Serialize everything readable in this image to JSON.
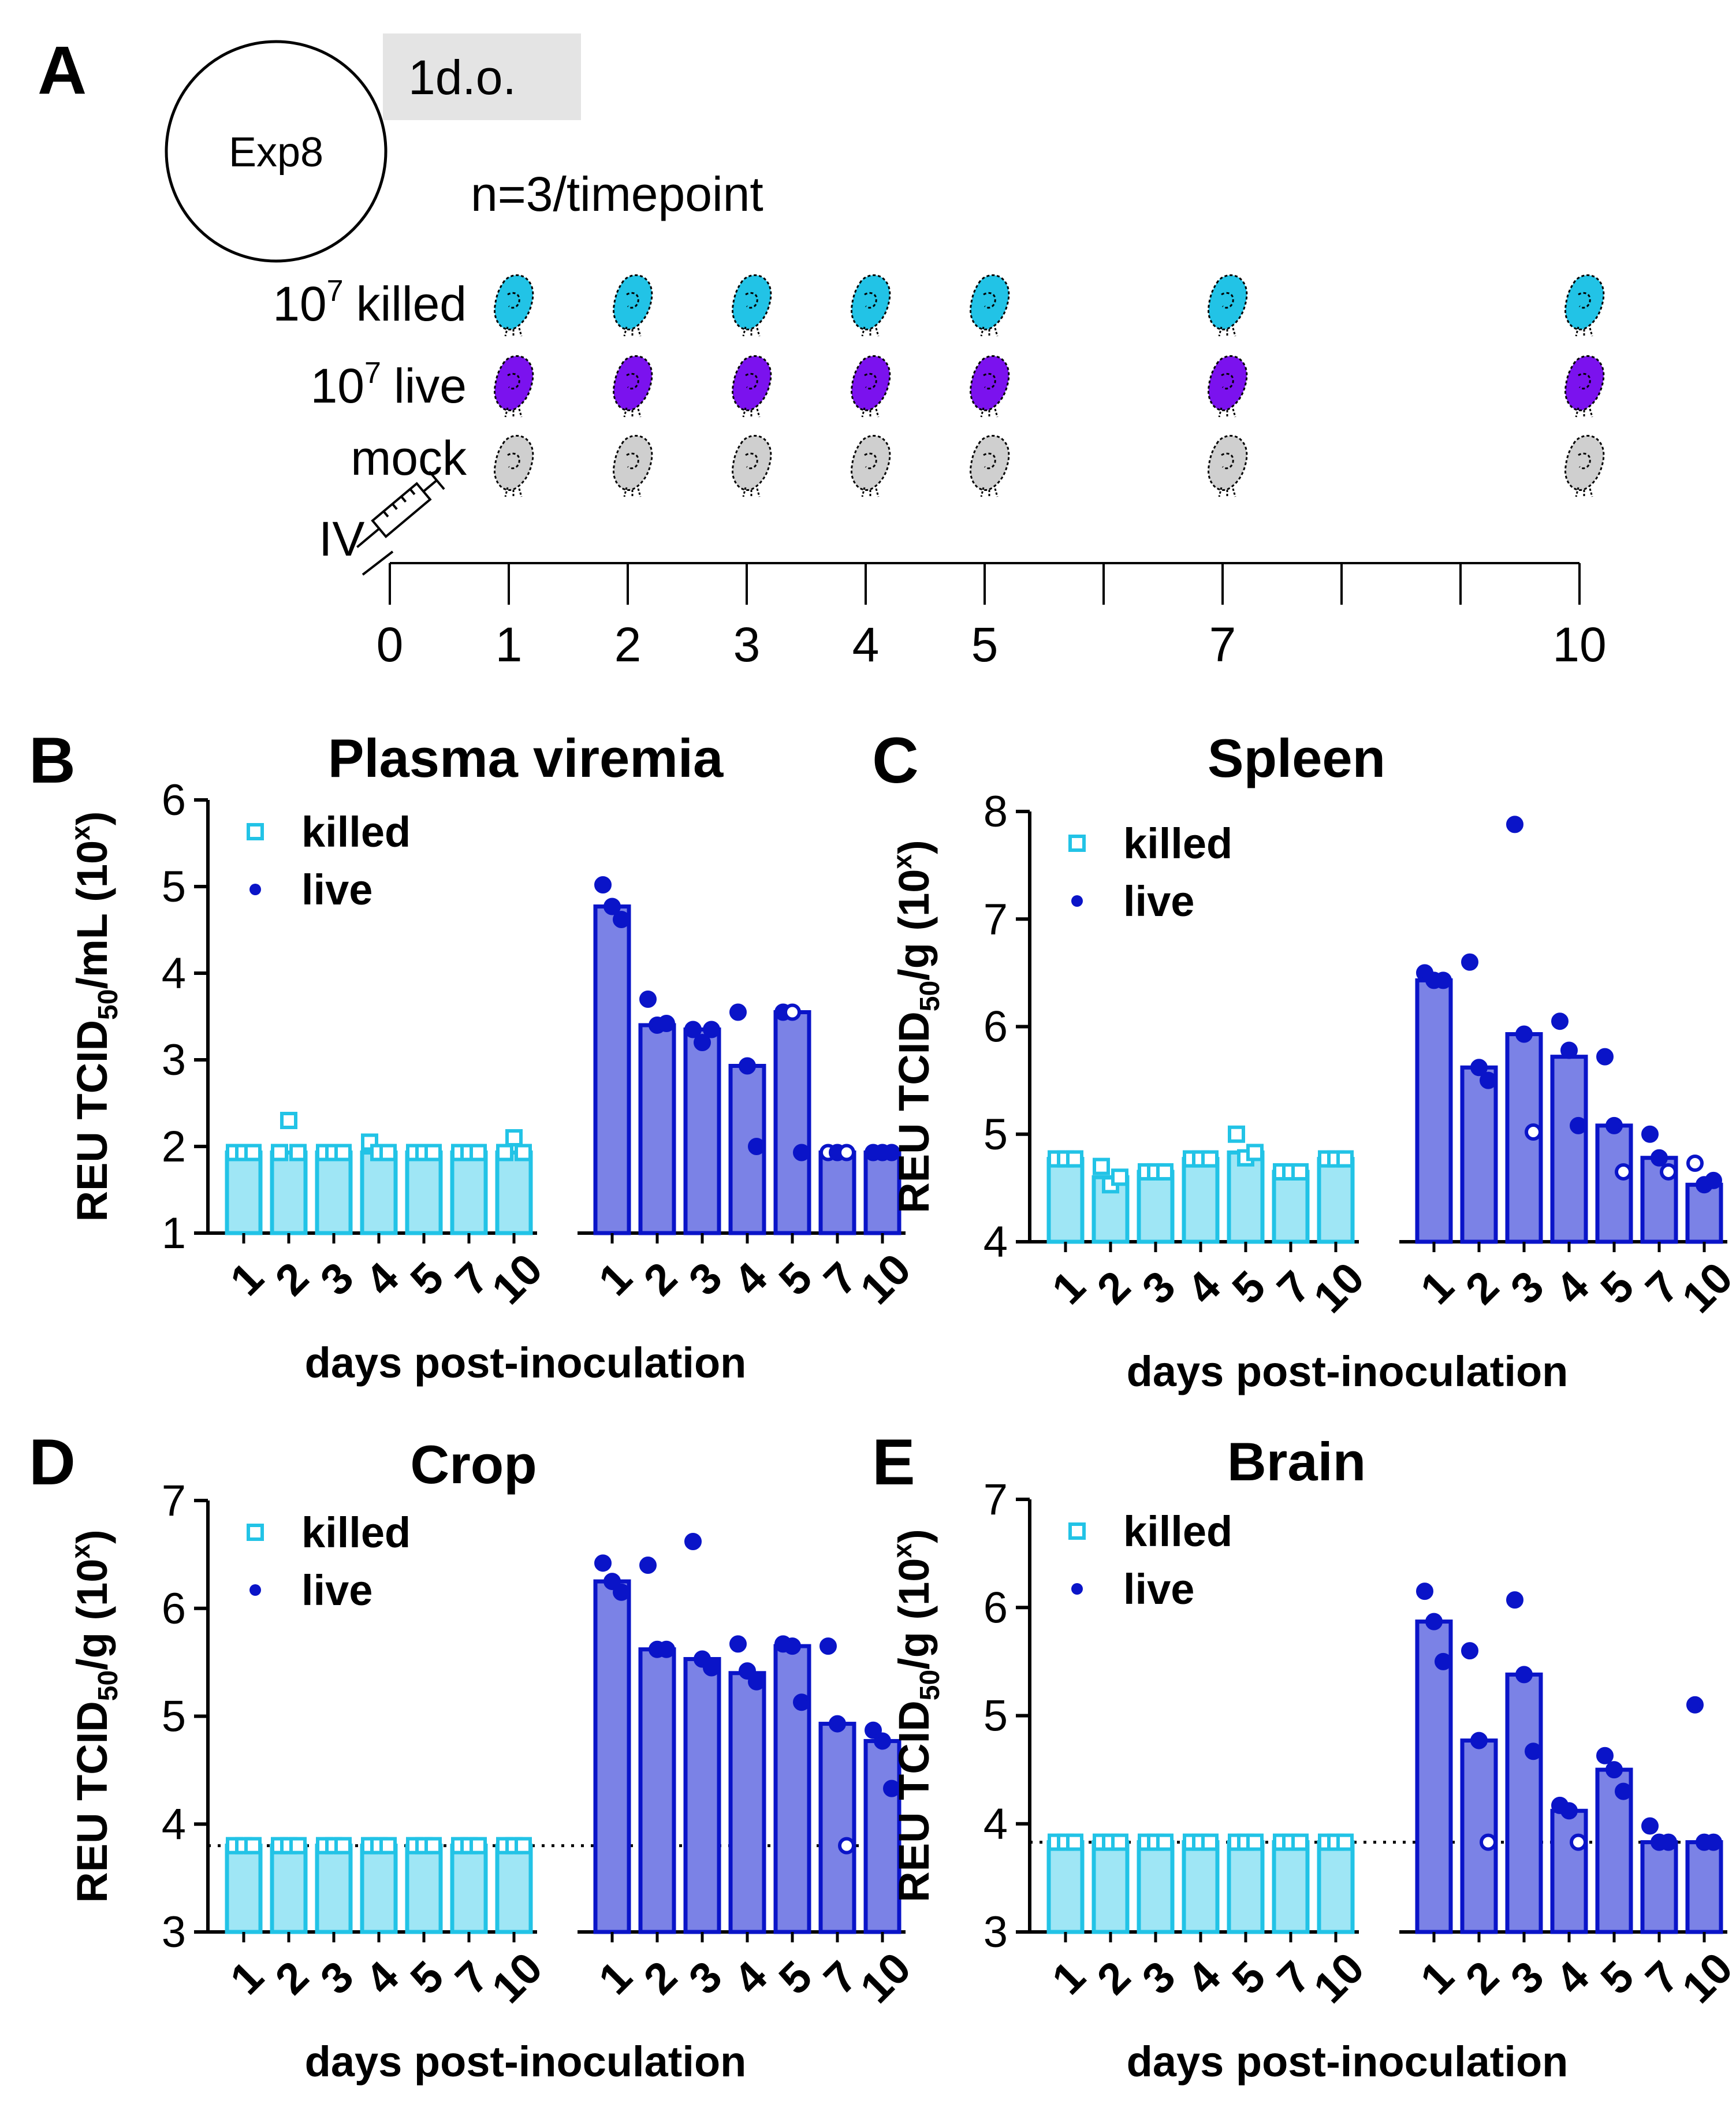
{
  "panel_a": {
    "letter": "A",
    "exp_label": "Exp8",
    "age_label": "1d.o.",
    "n_label": "n=3/timepoint",
    "rows": [
      {
        "exp": "7",
        "text": "killed",
        "color": "#22c3e6"
      },
      {
        "exp": "7",
        "text": "live",
        "color": "#7b12ee"
      },
      {
        "exp": "",
        "text": "mock",
        "color": "#cfcfcf"
      }
    ],
    "rows_prefix": "10",
    "route_label": "IV",
    "sampled_days": [
      1,
      2,
      3,
      4,
      5,
      7,
      10
    ],
    "timeline_ticks": [
      0,
      1,
      2,
      3,
      4,
      5,
      6,
      7,
      8,
      9,
      10
    ],
    "timeline_labels": [
      "0",
      "1",
      "2",
      "3",
      "4",
      "5",
      "7",
      "10"
    ],
    "icons": {
      "mouse": "mouse-silhouette-icon",
      "syringe": "syringe-icon",
      "circle": "experiment-circle"
    }
  },
  "colors": {
    "killed_line": "#22c3e6",
    "killed_fill": "#9fe6f5",
    "live_line": "#0a14c8",
    "live_fill": "#7b82e6"
  },
  "chart_data": [
    {
      "panel": "B",
      "title": "Plasma viremia",
      "type": "bar",
      "ylabel": {
        "pre": "REU  TCID",
        "sub": "50",
        "post": "/mL (10",
        "sup": "x",
        "end": ")"
      },
      "xlabel": "days post-inoculation",
      "ylim": [
        1,
        6
      ],
      "yticks": [
        1,
        2,
        3,
        4,
        5,
        6
      ],
      "detection_limit": null,
      "categories": [
        "1",
        "2",
        "3",
        "4",
        "5",
        "7",
        "10"
      ],
      "legend": [
        "killed",
        "live"
      ],
      "series": [
        {
          "name": "killed",
          "bars": [
            1.93,
            1.93,
            1.93,
            1.93,
            1.93,
            1.93,
            1.93
          ],
          "points": [
            [
              1.93,
              1.93,
              1.93
            ],
            [
              1.93,
              2.3,
              1.93
            ],
            [
              1.93,
              1.93,
              1.93
            ],
            [
              2.05,
              1.93,
              1.93
            ],
            [
              1.93,
              1.93,
              1.93
            ],
            [
              1.93,
              1.93,
              1.93
            ],
            [
              1.93,
              2.1,
              1.93
            ]
          ]
        },
        {
          "name": "live",
          "bars": [
            4.77,
            3.4,
            3.35,
            2.93,
            3.55,
            1.93,
            1.93
          ],
          "points": [
            [
              5.02,
              4.77,
              4.62
            ],
            [
              3.7,
              3.4,
              3.42
            ],
            [
              3.35,
              3.2,
              3.35
            ],
            [
              3.55,
              2.93,
              2.0
            ],
            [
              3.55,
              3.55,
              1.93
            ],
            [
              1.93,
              1.93,
              1.93
            ],
            [
              1.93,
              1.93,
              1.93
            ]
          ],
          "open_points": [
            [],
            [],
            [],
            [],
            [
              1
            ],
            [
              0,
              2
            ],
            []
          ]
        }
      ]
    },
    {
      "panel": "C",
      "title": "Spleen",
      "type": "bar",
      "ylabel": {
        "pre": "REU TCID",
        "sub": "50",
        "post": "/g (10",
        "sup": "x",
        "end": ")"
      },
      "xlabel": "days post-inoculation",
      "ylim": [
        4,
        8
      ],
      "yticks": [
        4,
        5,
        6,
        7,
        8
      ],
      "detection_limit": null,
      "categories": [
        "1",
        "2",
        "3",
        "4",
        "5",
        "7",
        "10"
      ],
      "legend": [
        "killed",
        "live"
      ],
      "series": [
        {
          "name": "killed",
          "bars": [
            4.77,
            4.6,
            4.65,
            4.77,
            4.83,
            4.65,
            4.77
          ],
          "points": [
            [
              4.77,
              4.77,
              4.77
            ],
            [
              4.7,
              4.53,
              4.6
            ],
            [
              4.65,
              4.65,
              4.65
            ],
            [
              4.77,
              4.77,
              4.77
            ],
            [
              5.0,
              4.78,
              4.83
            ],
            [
              4.65,
              4.65,
              4.65
            ],
            [
              4.77,
              4.77,
              4.77
            ]
          ]
        },
        {
          "name": "live",
          "bars": [
            6.43,
            5.62,
            5.93,
            5.72,
            5.08,
            4.78,
            4.53
          ],
          "points": [
            [
              6.5,
              6.43,
              6.43
            ],
            [
              6.6,
              5.62,
              5.5
            ],
            [
              7.88,
              5.93,
              5.02
            ],
            [
              6.05,
              5.78,
              5.08
            ],
            [
              5.72,
              5.08,
              4.65
            ],
            [
              5.0,
              4.78,
              4.65
            ],
            [
              4.73,
              4.53,
              4.57
            ]
          ],
          "open_points": [
            [],
            [],
            [
              2
            ],
            [],
            [
              2
            ],
            [
              2
            ],
            [
              0
            ]
          ]
        }
      ]
    },
    {
      "panel": "D",
      "title": "Crop",
      "type": "bar",
      "ylabel": {
        "pre": "REU TCID",
        "sub": "50",
        "post": "/g (10",
        "sup": "x",
        "end": ")"
      },
      "xlabel": "days post-inoculation",
      "ylim": [
        3,
        7
      ],
      "yticks": [
        3,
        4,
        5,
        6,
        7
      ],
      "detection_limit": 3.8,
      "categories": [
        "1",
        "2",
        "3",
        "4",
        "5",
        "7",
        "10"
      ],
      "legend": [
        "killed",
        "live"
      ],
      "series": [
        {
          "name": "killed",
          "bars": [
            3.8,
            3.8,
            3.8,
            3.8,
            3.8,
            3.8,
            3.8
          ],
          "points": [
            [
              3.8,
              3.8,
              3.8
            ],
            [
              3.8,
              3.8,
              3.8
            ],
            [
              3.8,
              3.8,
              3.8
            ],
            [
              3.8,
              3.8,
              3.8
            ],
            [
              3.8,
              3.8,
              3.8
            ],
            [
              3.8,
              3.8,
              3.8
            ],
            [
              3.8,
              3.8,
              3.8
            ]
          ]
        },
        {
          "name": "live",
          "bars": [
            6.25,
            5.62,
            5.53,
            5.4,
            5.65,
            4.93,
            4.77
          ],
          "points": [
            [
              6.42,
              6.25,
              6.15
            ],
            [
              6.4,
              5.62,
              5.62
            ],
            [
              6.62,
              5.53,
              5.45
            ],
            [
              5.67,
              5.42,
              5.32
            ],
            [
              5.67,
              5.65,
              5.13
            ],
            [
              5.65,
              4.93,
              3.8
            ],
            [
              4.87,
              4.77,
              4.33
            ]
          ],
          "open_points": [
            [],
            [],
            [],
            [],
            [],
            [
              2
            ],
            []
          ]
        }
      ]
    },
    {
      "panel": "E",
      "title": "Brain",
      "type": "bar",
      "ylabel": {
        "pre": "REU TCID",
        "sub": "50",
        "post": "/g (10",
        "sup": "x",
        "end": ")"
      },
      "xlabel": "days post-inoculation",
      "ylim": [
        3,
        7
      ],
      "yticks": [
        3,
        4,
        5,
        6,
        7
      ],
      "detection_limit": 3.83,
      "categories": [
        "1",
        "2",
        "3",
        "4",
        "5",
        "7",
        "10"
      ],
      "legend": [
        "killed",
        "live"
      ],
      "series": [
        {
          "name": "killed",
          "bars": [
            3.83,
            3.83,
            3.83,
            3.83,
            3.83,
            3.83,
            3.83
          ],
          "points": [
            [
              3.83,
              3.83,
              3.83
            ],
            [
              3.83,
              3.83,
              3.83
            ],
            [
              3.83,
              3.83,
              3.83
            ],
            [
              3.83,
              3.83,
              3.83
            ],
            [
              3.83,
              3.83,
              3.83
            ],
            [
              3.83,
              3.83,
              3.83
            ],
            [
              3.83,
              3.83,
              3.83
            ]
          ]
        },
        {
          "name": "live",
          "bars": [
            5.87,
            4.77,
            5.38,
            4.12,
            4.5,
            3.83,
            3.83
          ],
          "points": [
            [
              6.15,
              5.87,
              5.5
            ],
            [
              5.6,
              4.77,
              3.83
            ],
            [
              6.07,
              5.38,
              4.67
            ],
            [
              4.17,
              4.12,
              3.83
            ],
            [
              4.63,
              4.5,
              4.3
            ],
            [
              3.98,
              3.83,
              3.83
            ],
            [
              5.1,
              3.83,
              3.83
            ]
          ],
          "open_points": [
            [],
            [
              2
            ],
            [],
            [
              2
            ],
            [],
            [],
            []
          ]
        }
      ]
    }
  ]
}
